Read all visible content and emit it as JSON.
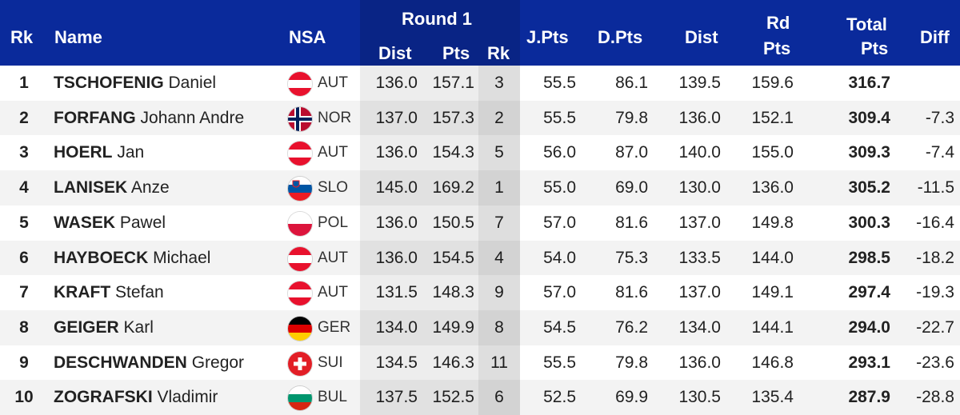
{
  "header": {
    "rk": "Rk",
    "name": "Name",
    "nsa": "NSA",
    "round1": "Round 1",
    "dist": "Dist",
    "pts": "Pts",
    "rk2": "Rk",
    "jpts": "J.Pts",
    "dpts": "D.Pts",
    "dist2": "Dist",
    "rdpts_line1": "Rd",
    "rdpts_line2": "Pts",
    "total_line1": "Total",
    "total_line2": "Pts",
    "diff": "Diff"
  },
  "colors": {
    "header_bg": "#0a2a9b",
    "header_text": "#ffffff",
    "row_alt_bg": "#f3f3f3"
  },
  "rows": [
    {
      "rank": "1",
      "surname": "TSCHOFENIG",
      "given": "Daniel",
      "nsa": "AUT",
      "flag": "austria-flag-icon",
      "dist1": "136.0",
      "pts1": "157.1",
      "rk1": "3",
      "jpts": "55.5",
      "dpts": "86.1",
      "dist2": "139.5",
      "rdpts": "159.6",
      "total": "316.7",
      "diff": ""
    },
    {
      "rank": "2",
      "surname": "FORFANG",
      "given": "Johann Andre",
      "nsa": "NOR",
      "flag": "norway-flag-icon",
      "dist1": "137.0",
      "pts1": "157.3",
      "rk1": "2",
      "jpts": "55.5",
      "dpts": "79.8",
      "dist2": "136.0",
      "rdpts": "152.1",
      "total": "309.4",
      "diff": "-7.3"
    },
    {
      "rank": "3",
      "surname": "HOERL",
      "given": "Jan",
      "nsa": "AUT",
      "flag": "austria-flag-icon",
      "dist1": "136.0",
      "pts1": "154.3",
      "rk1": "5",
      "jpts": "56.0",
      "dpts": "87.0",
      "dist2": "140.0",
      "rdpts": "155.0",
      "total": "309.3",
      "diff": "-7.4"
    },
    {
      "rank": "4",
      "surname": "LANISEK",
      "given": "Anze",
      "nsa": "SLO",
      "flag": "slovenia-flag-icon",
      "dist1": "145.0",
      "pts1": "169.2",
      "rk1": "1",
      "jpts": "55.0",
      "dpts": "69.0",
      "dist2": "130.0",
      "rdpts": "136.0",
      "total": "305.2",
      "diff": "-11.5"
    },
    {
      "rank": "5",
      "surname": "WASEK",
      "given": "Pawel",
      "nsa": "POL",
      "flag": "poland-flag-icon",
      "dist1": "136.0",
      "pts1": "150.5",
      "rk1": "7",
      "jpts": "57.0",
      "dpts": "81.6",
      "dist2": "137.0",
      "rdpts": "149.8",
      "total": "300.3",
      "diff": "-16.4"
    },
    {
      "rank": "6",
      "surname": "HAYBOECK",
      "given": "Michael",
      "nsa": "AUT",
      "flag": "austria-flag-icon",
      "dist1": "136.0",
      "pts1": "154.5",
      "rk1": "4",
      "jpts": "54.0",
      "dpts": "75.3",
      "dist2": "133.5",
      "rdpts": "144.0",
      "total": "298.5",
      "diff": "-18.2"
    },
    {
      "rank": "7",
      "surname": "KRAFT",
      "given": "Stefan",
      "nsa": "AUT",
      "flag": "austria-flag-icon",
      "dist1": "131.5",
      "pts1": "148.3",
      "rk1": "9",
      "jpts": "57.0",
      "dpts": "81.6",
      "dist2": "137.0",
      "rdpts": "149.1",
      "total": "297.4",
      "diff": "-19.3"
    },
    {
      "rank": "8",
      "surname": "GEIGER",
      "given": "Karl",
      "nsa": "GER",
      "flag": "germany-flag-icon",
      "dist1": "134.0",
      "pts1": "149.9",
      "rk1": "8",
      "jpts": "54.5",
      "dpts": "76.2",
      "dist2": "134.0",
      "rdpts": "144.1",
      "total": "294.0",
      "diff": "-22.7"
    },
    {
      "rank": "9",
      "surname": "DESCHWANDEN",
      "given": "Gregor",
      "nsa": "SUI",
      "flag": "switzerland-flag-icon",
      "dist1": "134.5",
      "pts1": "146.3",
      "rk1": "11",
      "jpts": "55.5",
      "dpts": "79.8",
      "dist2": "136.0",
      "rdpts": "146.8",
      "total": "293.1",
      "diff": "-23.6"
    },
    {
      "rank": "10",
      "surname": "ZOGRAFSKI",
      "given": "Vladimir",
      "nsa": "BUL",
      "flag": "bulgaria-flag-icon",
      "dist1": "137.5",
      "pts1": "152.5",
      "rk1": "6",
      "jpts": "52.5",
      "dpts": "69.9",
      "dist2": "130.5",
      "rdpts": "135.4",
      "total": "287.9",
      "diff": "-28.8"
    }
  ]
}
